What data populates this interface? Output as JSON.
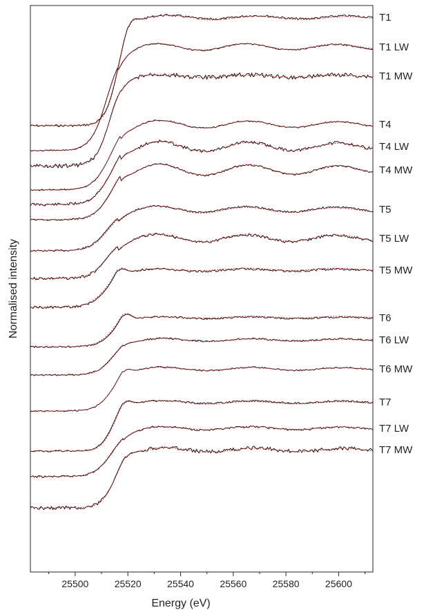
{
  "chart_data": {
    "type": "line",
    "xlabel": "Energy (eV)",
    "ylabel": "Normalised intensity",
    "xlim": [
      25483,
      25613
    ],
    "xticks": [
      25500,
      25520,
      25540,
      25560,
      25580,
      25600
    ],
    "grid": false,
    "legend": "none",
    "stacked_offset": true,
    "series_labels": [
      "T1",
      "T1 LW",
      "T1 MW",
      "T4",
      "T4 LW",
      "T4 MW",
      "T5",
      "T5 LW",
      "T5 MW",
      "T6",
      "T6 LW",
      "T6 MW",
      "T7",
      "T7 LW",
      "T7 MW"
    ],
    "colors": {
      "measured": "#111111",
      "fit": "#d62020",
      "axis": "#222222"
    },
    "fit_style": "dotted"
  }
}
